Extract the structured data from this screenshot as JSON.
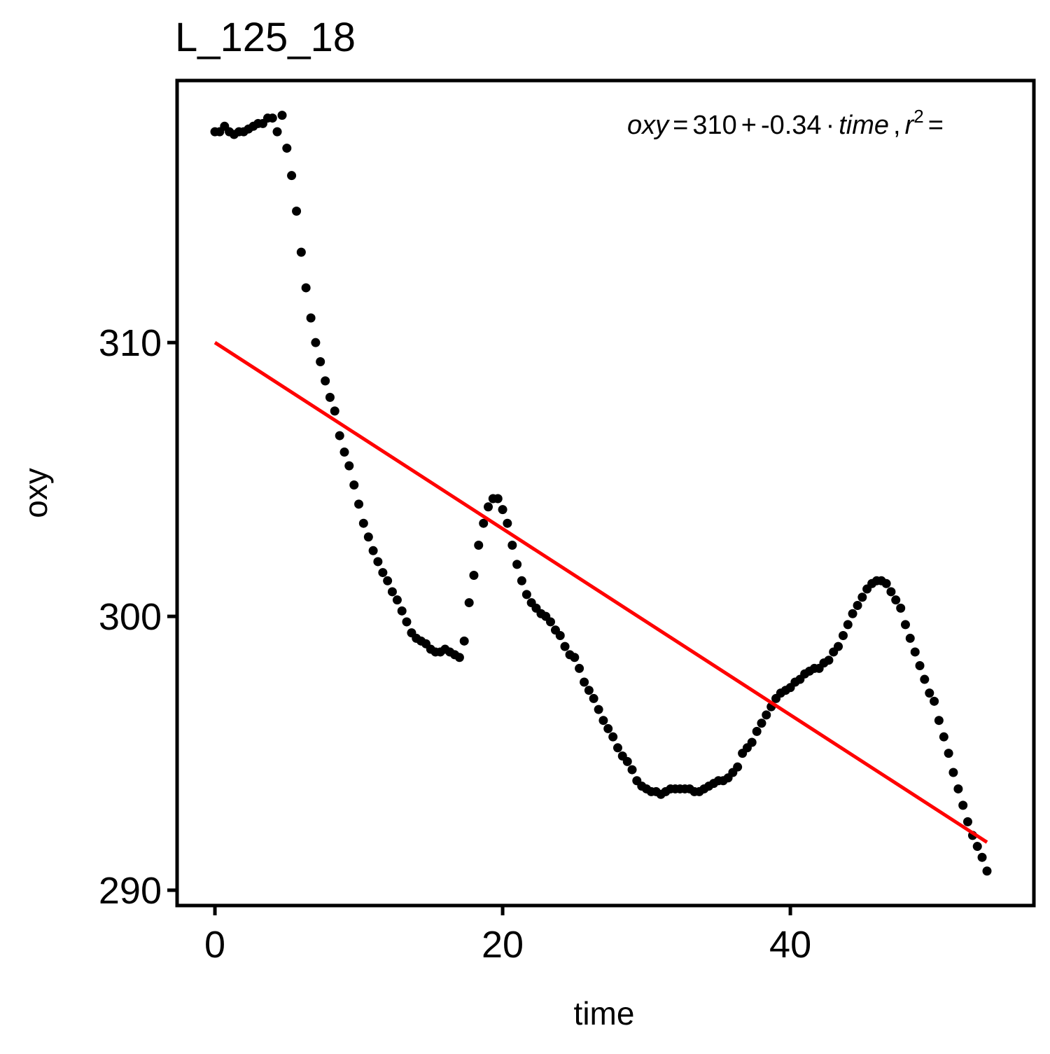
{
  "chart_data": {
    "type": "scatter",
    "title": "L_125_18",
    "x_label": "time",
    "y_label": "oxy",
    "xlim": [
      -2.63,
      56.93
    ],
    "ylim": [
      289.44,
      319.57
    ],
    "xticks": [
      0,
      20,
      40
    ],
    "yticks": [
      290,
      300,
      310
    ],
    "color": "#000000",
    "x": [
      0,
      0.33,
      0.67,
      1,
      1.33,
      1.67,
      2,
      2.33,
      2.67,
      3,
      3.33,
      3.67,
      4,
      4.33,
      4.67,
      5,
      5.33,
      5.67,
      6,
      6.33,
      6.67,
      7,
      7.33,
      7.67,
      8,
      8.33,
      8.67,
      9,
      9.33,
      9.67,
      10,
      10.33,
      10.67,
      11,
      11.33,
      11.67,
      12,
      12.33,
      12.67,
      13,
      13.33,
      13.67,
      14,
      14.33,
      14.67,
      15,
      15.33,
      15.67,
      16,
      16.33,
      16.67,
      17,
      17.33,
      17.67,
      18,
      18.33,
      18.67,
      19,
      19.33,
      19.67,
      20,
      20.33,
      20.67,
      21,
      21.33,
      21.67,
      22,
      22.33,
      22.67,
      23,
      23.33,
      23.67,
      24,
      24.33,
      24.67,
      25,
      25.33,
      25.67,
      26,
      26.33,
      26.67,
      27,
      27.33,
      27.67,
      28,
      28.33,
      28.67,
      29,
      29.33,
      29.67,
      30,
      30.33,
      30.67,
      31,
      31.33,
      31.67,
      32,
      32.33,
      32.67,
      33,
      33.33,
      33.67,
      34,
      34.33,
      34.67,
      35,
      35.33,
      35.67,
      36,
      36.33,
      36.67,
      37,
      37.33,
      37.67,
      38,
      38.33,
      38.67,
      39,
      39.33,
      39.67,
      40,
      40.33,
      40.67,
      41,
      41.33,
      41.67,
      42,
      42.33,
      42.67,
      43,
      43.33,
      43.67,
      44,
      44.33,
      44.67,
      45,
      45.33,
      45.67,
      46,
      46.33,
      46.67,
      47,
      47.33,
      47.67,
      48,
      48.33,
      48.67,
      49,
      49.33,
      49.67,
      50,
      50.33,
      50.67,
      51,
      51.33,
      51.67,
      52,
      52.33,
      52.67,
      53,
      53.33,
      53.67
    ],
    "values": [
      317.7,
      317.7,
      317.9,
      317.7,
      317.6,
      317.7,
      317.7,
      317.8,
      317.9,
      318.0,
      318.0,
      318.2,
      318.2,
      317.7,
      318.3,
      317.1,
      316.1,
      314.8,
      313.3,
      312.0,
      310.9,
      310.0,
      309.3,
      308.6,
      308.0,
      307.5,
      306.6,
      306.0,
      305.5,
      304.8,
      304.1,
      303.4,
      302.9,
      302.4,
      302.0,
      301.6,
      301.3,
      300.9,
      300.6,
      300.2,
      299.8,
      299.4,
      299.2,
      299.1,
      299.0,
      298.8,
      298.7,
      298.7,
      298.8,
      298.7,
      298.6,
      298.5,
      299.1,
      300.5,
      301.5,
      302.6,
      303.4,
      304.0,
      304.3,
      304.3,
      303.9,
      303.4,
      302.6,
      301.9,
      301.3,
      300.8,
      300.5,
      300.3,
      300.1,
      300.0,
      299.8,
      299.5,
      299.3,
      298.9,
      298.6,
      298.5,
      298.1,
      297.6,
      297.3,
      297.0,
      296.6,
      296.2,
      295.9,
      295.6,
      295.2,
      294.9,
      294.7,
      294.4,
      294.0,
      293.8,
      293.7,
      293.6,
      293.6,
      293.5,
      293.6,
      293.7,
      293.7,
      293.7,
      293.7,
      293.7,
      293.6,
      293.6,
      293.7,
      293.8,
      293.9,
      294.0,
      294.0,
      294.1,
      294.3,
      294.5,
      295.0,
      295.2,
      295.4,
      295.8,
      296.1,
      296.4,
      296.7,
      297.0,
      297.2,
      297.3,
      297.4,
      297.6,
      297.7,
      297.9,
      298.0,
      298.1,
      298.1,
      298.3,
      298.4,
      298.7,
      298.9,
      299.3,
      299.7,
      300.1,
      300.4,
      300.7,
      301.0,
      301.2,
      301.3,
      301.3,
      301.2,
      300.9,
      300.6,
      300.3,
      299.7,
      299.2,
      298.7,
      298.2,
      297.7,
      297.2,
      296.9,
      296.2,
      295.6,
      295.0,
      294.3,
      293.7,
      293.1,
      292.5,
      292.0,
      291.6,
      291.2,
      290.7
    ],
    "fit": {
      "intercept": 310,
      "slope": -0.34,
      "color": "#ff0000"
    },
    "equation": {
      "lhs": "oxy",
      "eq": "=",
      "plus": "+",
      "dot": "·",
      "var": "time",
      "sep": ",",
      "r2": "r",
      "sup": "2",
      "eq2": "="
    }
  }
}
